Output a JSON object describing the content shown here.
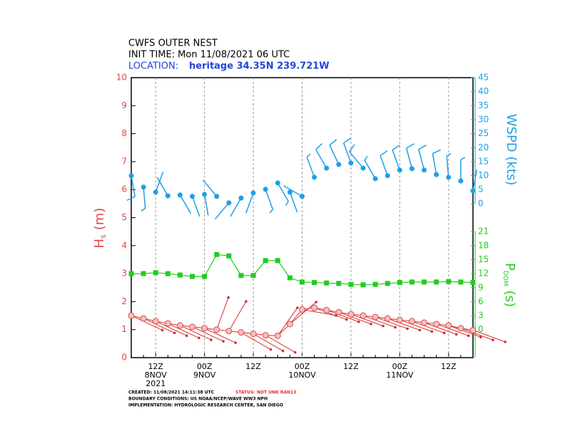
{
  "chart_data": {
    "type": "line",
    "title_lines": [
      "CWFS OUTER NEST",
      "INIT TIME: Mon 11/08/2021 06 UTC"
    ],
    "location_label": "LOCATION:",
    "location": "heritage 34.35N 239.721W",
    "categories": [
      null,
      null,
      "12Z",
      null,
      null,
      null,
      "00Z",
      null,
      null,
      null,
      "12Z",
      null,
      null,
      null,
      "00Z",
      null,
      null,
      null,
      "12Z",
      null,
      null,
      null,
      "00Z",
      null,
      null,
      null,
      "12Z",
      null,
      null
    ],
    "category_dates": [
      null,
      null,
      "8NOV",
      null,
      null,
      null,
      "9NOV",
      null,
      null,
      null,
      null,
      null,
      null,
      null,
      "10NOV",
      null,
      null,
      null,
      null,
      null,
      null,
      null,
      "11NOV",
      null,
      null,
      null,
      null,
      null,
      null
    ],
    "category_years": [
      null,
      null,
      "2021",
      null,
      null,
      null,
      null,
      null,
      null,
      null,
      null,
      null,
      null,
      null,
      null,
      null,
      null,
      null,
      null,
      null,
      null,
      null,
      null,
      null,
      null,
      null,
      null,
      null,
      null
    ],
    "grid": "x",
    "ylim": [
      0,
      10
    ],
    "yticks": [
      0,
      1,
      2,
      3,
      4,
      5,
      6,
      7,
      8,
      9,
      10
    ],
    "y_label": {
      "main": "H",
      "sub": "s",
      "unit": "(m)"
    },
    "y2lim": [
      -55,
      45
    ],
    "y2ticks": [
      0,
      5,
      10,
      15,
      20,
      25,
      30,
      35,
      40,
      45
    ],
    "y2_label": "WSPD (kts)",
    "y3lim": [
      -6,
      54
    ],
    "y3ticks": [
      0,
      3,
      6,
      9,
      12,
      15,
      18,
      21
    ],
    "y3_label": {
      "main": "P",
      "sub": "DOM",
      "unit": "(s)"
    },
    "series": [
      {
        "axis": "y",
        "color": "#e04848",
        "marker": "circle",
        "values": [
          1.5,
          1.4,
          1.3,
          1.22,
          1.15,
          1.1,
          1.05,
          1.0,
          0.95,
          0.9,
          0.85,
          0.8,
          0.78,
          1.2,
          1.72,
          1.78,
          1.7,
          1.62,
          1.55,
          1.5,
          1.45,
          1.4,
          1.35,
          1.3,
          1.25,
          1.2,
          1.15,
          1.05,
          0.98
        ],
        "directions": [
          295,
          295,
          295,
          295,
          295,
          295,
          295,
          200,
          210,
          300,
          300,
          300,
          215,
          230,
          280,
          290,
          290,
          290,
          290,
          290,
          290,
          290,
          290,
          290,
          290,
          290,
          290,
          290,
          290
        ]
      },
      {
        "axis": "y2",
        "color": "#1e9fe6",
        "marker": "dot",
        "values": [
          10.0,
          5.9,
          4.1,
          2.8,
          3.1,
          2.6,
          3.3,
          2.6,
          0.3,
          2.0,
          3.8,
          5.1,
          7.4,
          4.1,
          2.6,
          9.4,
          12.7,
          14.0,
          14.5,
          12.7,
          8.9,
          10.0,
          12.0,
          12.5,
          12.0,
          10.4,
          9.4,
          8.1,
          4.6
        ],
        "directions": [
          170,
          175,
          20,
          330,
          150,
          160,
          170,
          320,
          220,
          210,
          200,
          160,
          150,
          160,
          300,
          340,
          330,
          335,
          340,
          320,
          330,
          340,
          340,
          345,
          345,
          350,
          355,
          0,
          10
        ]
      },
      {
        "axis": "y3",
        "color": "#22cc22",
        "marker": "square",
        "values": [
          12.0,
          12.0,
          12.2,
          12.0,
          11.7,
          11.4,
          11.4,
          16.1,
          15.8,
          11.6,
          11.6,
          14.8,
          14.8,
          11.1,
          10.2,
          10.1,
          10.0,
          9.9,
          9.7,
          9.6,
          9.7,
          9.9,
          10.1,
          10.2,
          10.2,
          10.2,
          10.3,
          10.2,
          10.1
        ]
      }
    ],
    "footer": {
      "created": "CREATED: 11/08/2021 14:11:38 UTC",
      "status": "STATUS: NOT UNK RAN13",
      "boundary": "BOUNDARY CONDITIONS: US NOAA/NCEP/WAVE WW3 NPH",
      "implementation": "IMPLEMENTATION: HYDROLOGIC RESEARCH CENTER, SAN DIEGO"
    }
  }
}
